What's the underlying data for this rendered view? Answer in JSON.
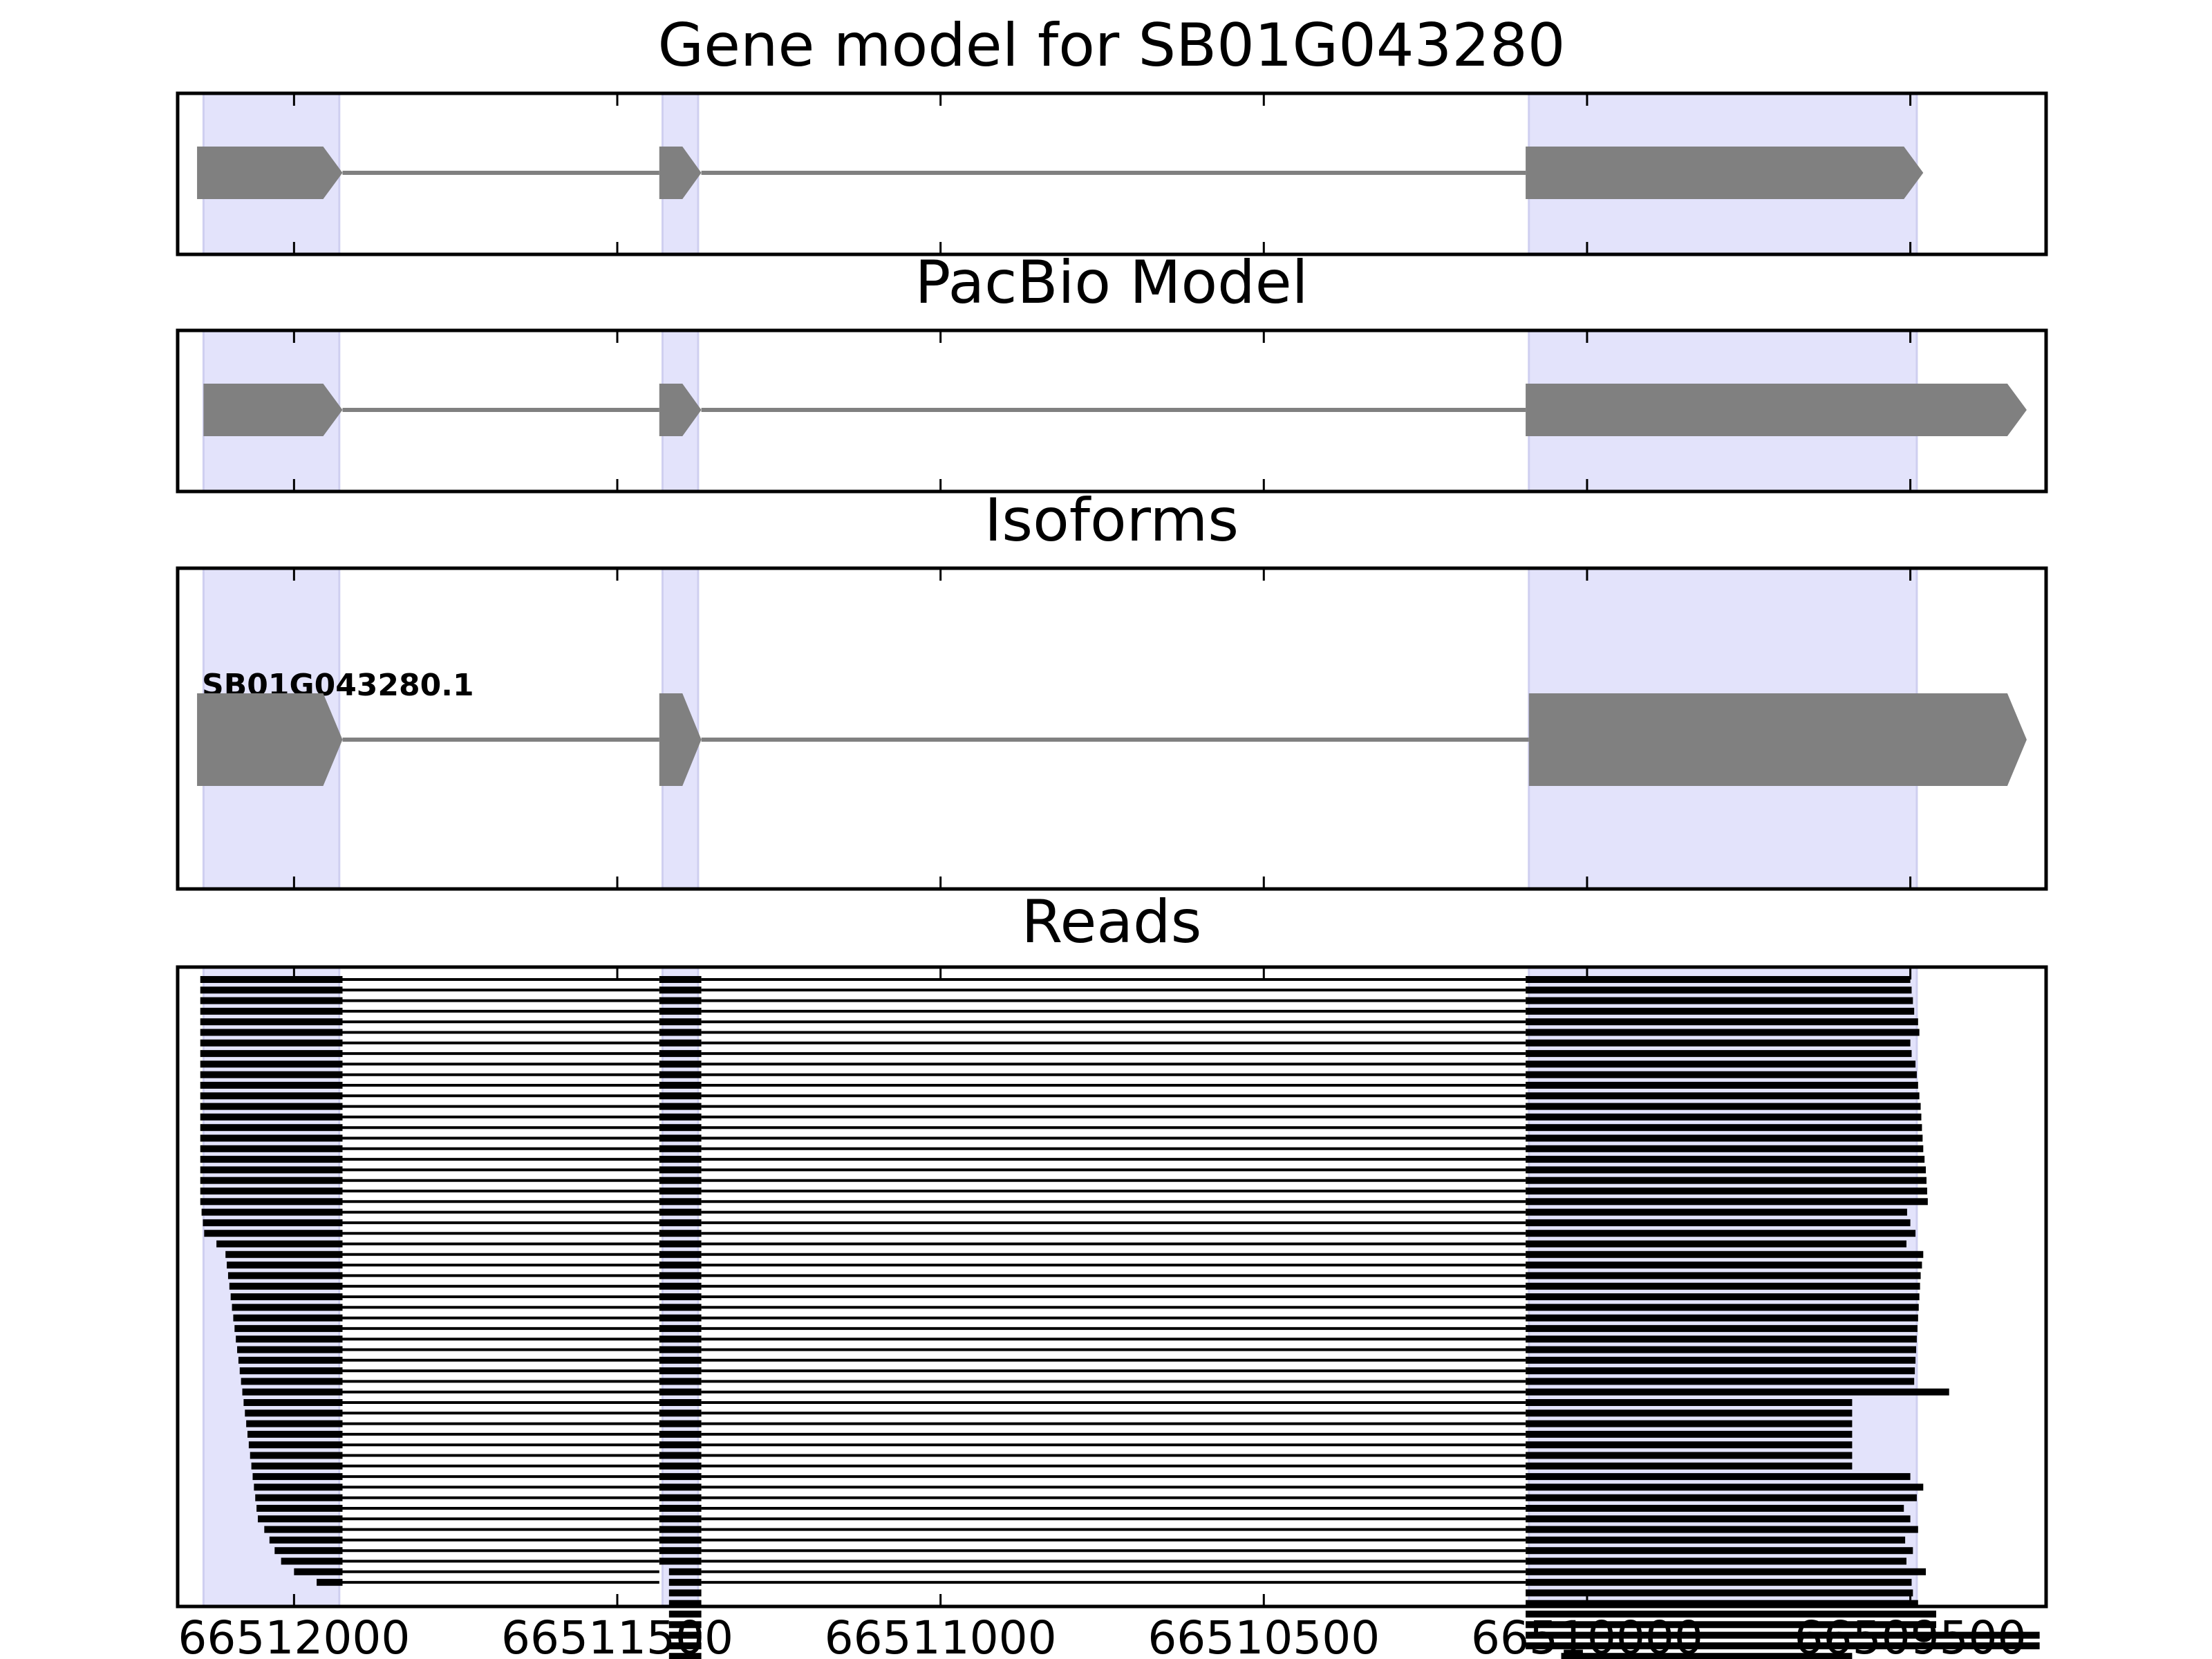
{
  "colors": {
    "exon_fill": "#808080",
    "intron_line": "#808080",
    "highlight": "#e3e3fb",
    "read": "#000000",
    "frame": "#000000",
    "background": "#ffffff"
  },
  "chart_data": {
    "type": "gene-track",
    "x_axis": {
      "reversed": true,
      "xlim": [
        66512180,
        66509290
      ],
      "ticks": [
        66512000,
        66511500,
        66511000,
        66510500,
        66510000,
        66509500
      ],
      "tick_labels": [
        "66512000",
        "66511500",
        "66511000",
        "66510500",
        "66510000",
        "66509500"
      ]
    },
    "highlight_regions": [
      [
        66512140,
        66511930
      ],
      [
        66511430,
        66511375
      ],
      [
        66510090,
        66509490
      ]
    ],
    "panels": [
      {
        "id": "gene-model",
        "title": "Gene model for SB01G043280",
        "models": [
          {
            "label": "",
            "exons": [
              [
                66512150,
                66511925
              ],
              [
                66511435,
                66511370
              ],
              [
                66510095,
                66509480
              ]
            ]
          }
        ]
      },
      {
        "id": "pacbio-model",
        "title": "PacBio Model",
        "models": [
          {
            "label": "",
            "exons": [
              [
                66512140,
                66511925
              ],
              [
                66511435,
                66511370
              ],
              [
                66510095,
                66509320
              ]
            ]
          }
        ]
      },
      {
        "id": "isoforms",
        "title": "Isoforms",
        "models": [
          {
            "label": "SB01G043280.1",
            "exons": [
              [
                66512150,
                66511925
              ],
              [
                66511435,
                66511370
              ],
              [
                66510090,
                66509320
              ]
            ]
          }
        ]
      },
      {
        "id": "reads",
        "title": "Reads",
        "exon1_start": [
          66512145,
          66512145,
          66512145,
          66512145,
          66512145,
          66512145,
          66512145,
          66512145,
          66512145,
          66512145,
          66512145,
          66512145,
          66512145,
          66512145,
          66512145,
          66512145,
          66512145,
          66512145,
          66512145,
          66512145,
          66512145,
          66512145,
          66512143,
          66512141,
          66512139,
          66512120,
          66512106,
          66512104,
          66512102,
          66512100,
          66512098,
          66512096,
          66512094,
          66512092,
          66512090,
          66512088,
          66512086,
          66512084,
          66512082,
          66512080,
          66512078,
          66512076,
          66512074,
          66512072,
          66512070,
          66512068,
          66512066,
          66512064,
          66512062,
          66512060,
          66512058,
          66512056,
          66512046,
          66512038,
          66512030,
          66512020,
          66512000,
          66511965
        ],
        "exon3_end": [
          66509500,
          66509498,
          66509496,
          66509494,
          66509488,
          66509486,
          66509500,
          66509498,
          66509492,
          66509490,
          66509488,
          66509486,
          66509484,
          66509483,
          66509482,
          66509481,
          66509480,
          66509478,
          66509476,
          66509475,
          66509474,
          66509473,
          66509505,
          66509500,
          66509492,
          66509506,
          66509480,
          66509482,
          66509484,
          66509485,
          66509486,
          66509487,
          66509488,
          66509489,
          66509490,
          66509491,
          66509492,
          66509493,
          66509494,
          66509440,
          66509590,
          66509590,
          66509590,
          66509590,
          66509590,
          66509590,
          66509590,
          66509500,
          66509480,
          66509490,
          66509510,
          66509500,
          66509488,
          66509508,
          66509496,
          66509506,
          66509476,
          66509498,
          66509496,
          66509488,
          66509460,
          66509460,
          66509300,
          66509300,
          66509590,
          66509490
        ],
        "exon3_start": [
          66510095,
          66510095,
          66510095,
          66510095,
          66510095,
          66510095,
          66510095,
          66510095,
          66510095,
          66510095,
          66510095,
          66510095,
          66510095,
          66510095,
          66510095,
          66510095,
          66510095,
          66510095,
          66510095,
          66510095,
          66510095,
          66510095,
          66510095,
          66510095,
          66510095,
          66510095,
          66510095,
          66510095,
          66510095,
          66510095,
          66510095,
          66510095,
          66510095,
          66510095,
          66510095,
          66510095,
          66510095,
          66510095,
          66510095,
          66510095,
          66510095,
          66510095,
          66510095,
          66510095,
          66510095,
          66510095,
          66510095,
          66510095,
          66510095,
          66510095,
          66510095,
          66510095,
          66510095,
          66510095,
          66510095,
          66510095,
          66510095,
          66510095,
          66510095,
          66510095,
          66510095,
          66510095,
          66510095,
          66510095,
          66510040,
          66509975
        ]
      }
    ]
  }
}
